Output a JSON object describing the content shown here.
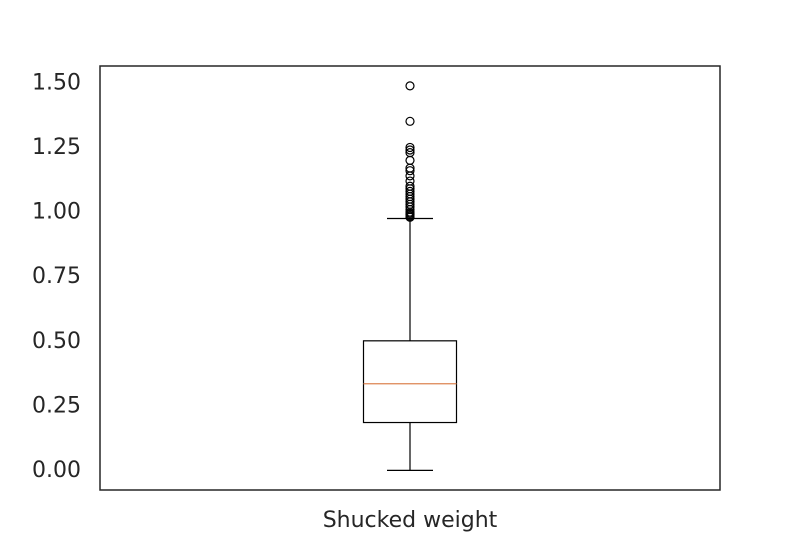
{
  "chart_data": {
    "type": "boxplot",
    "title": "",
    "xlabel": "",
    "ylabel": "",
    "categories": [
      "Shucked weight"
    ],
    "ylim": [
      -0.075,
      1.565
    ],
    "yticks": [
      0.0,
      0.25,
      0.5,
      0.75,
      1.0,
      1.25,
      1.5
    ],
    "ytick_labels": [
      "0.00",
      "0.25",
      "0.50",
      "0.75",
      "1.00",
      "1.25",
      "1.50"
    ],
    "grid": false,
    "boxes": [
      {
        "category": "Shucked weight",
        "whisker_low": 0.001,
        "q1": 0.186,
        "median": 0.336,
        "q3": 0.502,
        "whisker_high": 0.975,
        "fliers": [
          0.98,
          0.985,
          0.99,
          0.995,
          1.0,
          1.01,
          1.02,
          1.03,
          1.04,
          1.05,
          1.06,
          1.07,
          1.08,
          1.09,
          1.1,
          1.12,
          1.14,
          1.16,
          1.17,
          1.2,
          1.23,
          1.24,
          1.25,
          1.351,
          1.488
        ]
      }
    ],
    "colors": {
      "box": "#000000",
      "median": "#dd8452",
      "axes": "#262626"
    }
  }
}
